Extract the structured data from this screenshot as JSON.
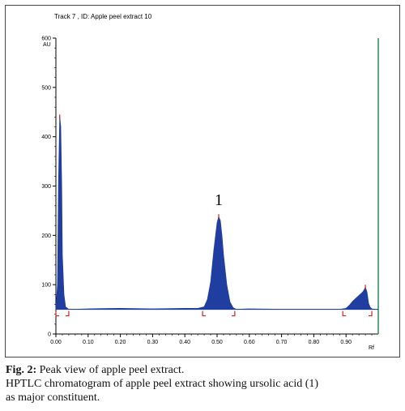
{
  "chart_data": {
    "type": "line",
    "title": "Track  7 , ID: Apple peel extract 10",
    "ylabel": "AU",
    "xlabel": "Rf",
    "xlim": [
      0.0,
      1.0
    ],
    "ylim": [
      0,
      600
    ],
    "x_ticks": [
      "0.00",
      "0.10",
      "0.20",
      "0.30",
      "0.40",
      "0.50",
      "0.60",
      "0.70",
      "0.80",
      "0.90"
    ],
    "y_ticks": [
      "0",
      "100",
      "200",
      "300",
      "400",
      "500",
      "600"
    ],
    "baseline": 50,
    "series": [
      {
        "x": [
          0.0,
          0.005,
          0.008,
          0.012,
          0.015,
          0.018,
          0.02,
          0.025,
          0.03,
          0.04,
          0.06,
          0.1,
          0.2,
          0.3,
          0.4,
          0.44,
          0.46,
          0.47,
          0.48,
          0.49,
          0.5,
          0.505,
          0.51,
          0.515,
          0.52,
          0.53,
          0.54,
          0.55,
          0.56,
          0.6,
          0.7,
          0.8,
          0.88,
          0.9,
          0.91,
          0.92,
          0.93,
          0.94,
          0.95,
          0.955,
          0.96,
          0.965,
          0.97,
          0.975,
          0.98,
          0.99,
          1.0
        ],
        "y": [
          50,
          100,
          300,
          440,
          420,
          300,
          160,
          80,
          55,
          50,
          50,
          51,
          52,
          51,
          52,
          52,
          55,
          70,
          105,
          170,
          225,
          238,
          230,
          200,
          160,
          100,
          65,
          53,
          50,
          51,
          50,
          50,
          50,
          52,
          58,
          66,
          72,
          78,
          84,
          88,
          95,
          85,
          62,
          54,
          51,
          50,
          50
        ]
      }
    ],
    "annotations": [
      {
        "text": "1",
        "x": 0.505,
        "y": 238
      }
    ],
    "colors": {
      "fill": "#1f3ea0",
      "peak_marker": "#cc2222",
      "bracket": "#cc2222",
      "axis": "#000000",
      "right_edge": "#2e8b57"
    }
  },
  "caption": {
    "fig_label": "Fig. 2:",
    "fig_title": " Peak view of apple peel extract.",
    "line2": "HPTLC chromatogram of apple peel extract showing ursolic acid (1)",
    "line3": "as major constituent."
  }
}
